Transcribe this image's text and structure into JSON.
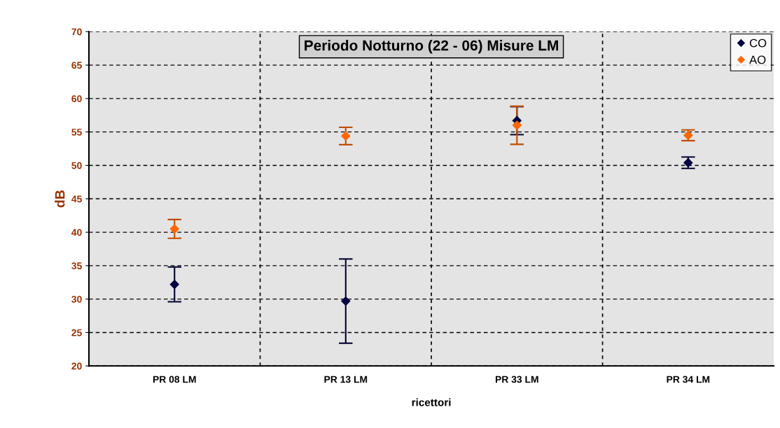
{
  "chart_data": {
    "type": "scatter",
    "title": "Periodo Notturno (22 - 06) Misure LM",
    "xlabel": "ricettori",
    "ylabel": "dB",
    "categories": [
      "PR 08 LM",
      "PR 13 LM",
      "PR 33 LM",
      "PR 34 LM"
    ],
    "series": [
      {
        "name": "CO",
        "color": "#000040",
        "values": [
          32.2,
          29.7,
          56.7,
          50.4
        ],
        "errors": [
          2.6,
          6.3,
          2.1,
          0.85
        ]
      },
      {
        "name": "AO",
        "color": "#ff6600",
        "values": [
          40.5,
          54.4,
          56.0,
          54.5
        ],
        "errors": [
          1.4,
          1.3,
          2.85,
          0.8
        ]
      }
    ],
    "ylim": [
      20,
      70
    ],
    "yticks": [
      20,
      25,
      30,
      35,
      40,
      45,
      50,
      55,
      60,
      65,
      70
    ],
    "grid": true,
    "legend": "top right",
    "marker": "diamond"
  }
}
